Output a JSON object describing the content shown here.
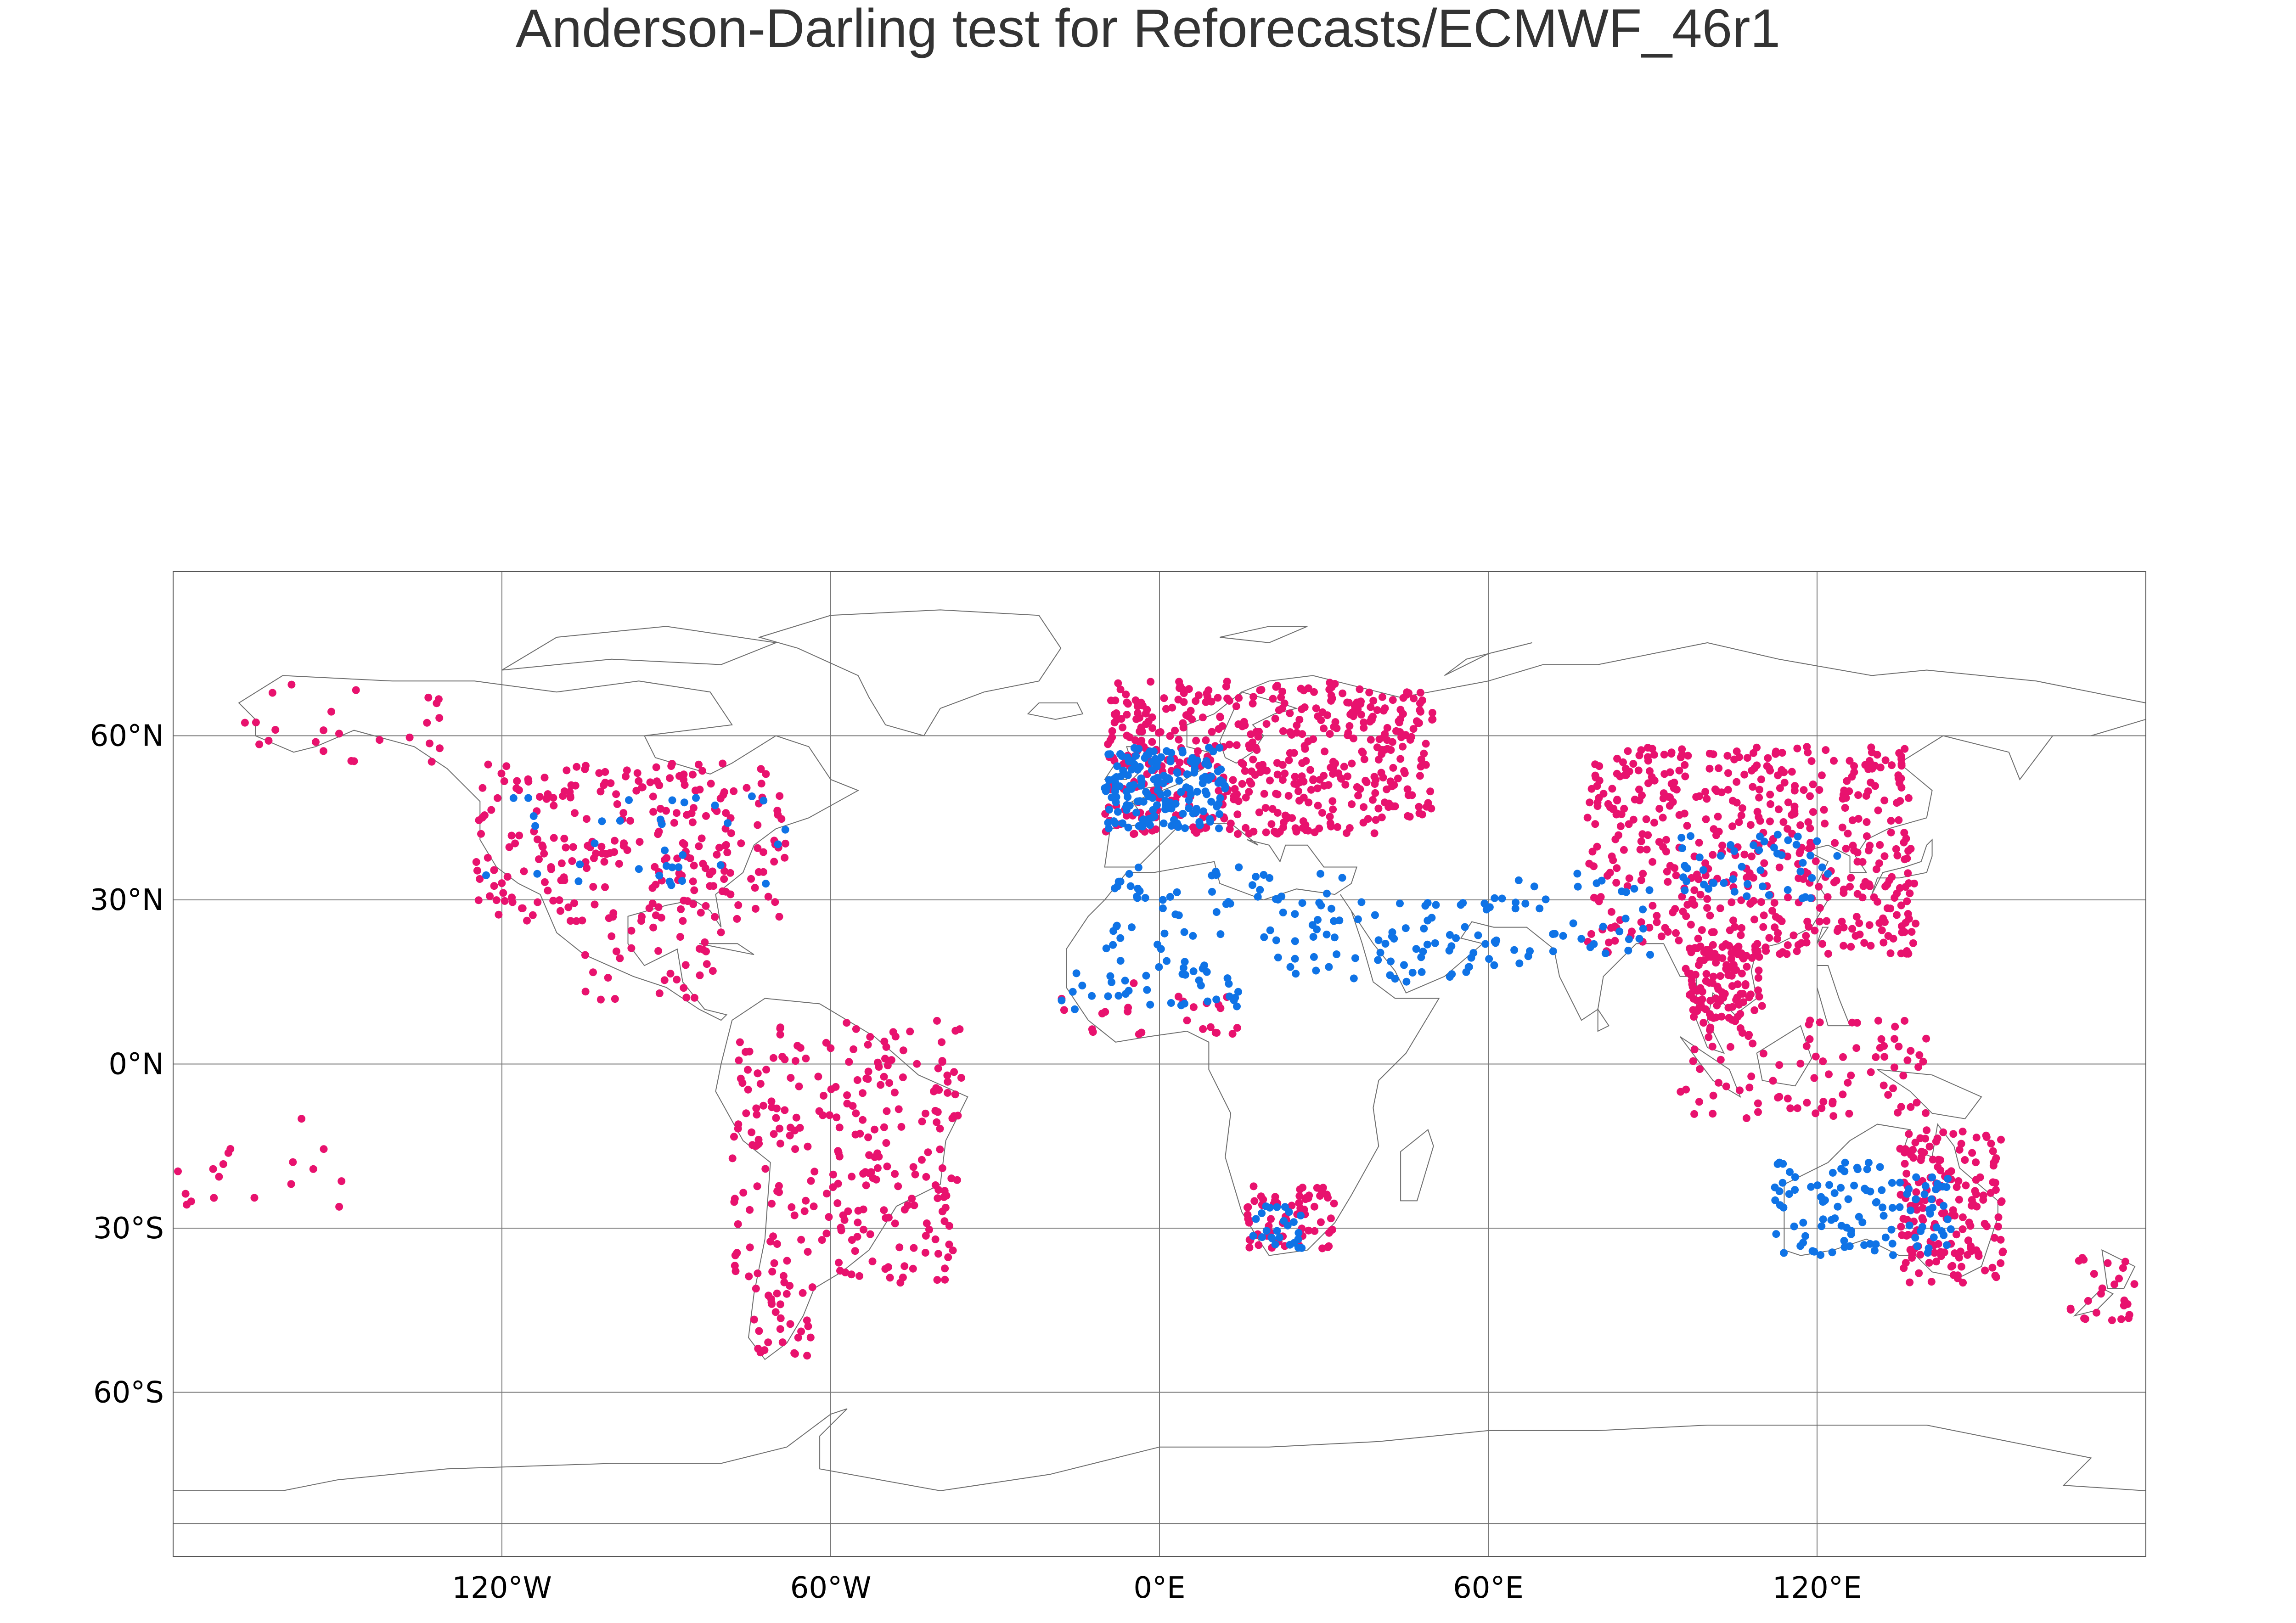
{
  "title": "Anderson-Darling test for Reforecasts/ECMWF_46r1",
  "map": {
    "projection": "equirectangular",
    "lon_range": [
      -180,
      180
    ],
    "lat_range": [
      -90,
      90
    ],
    "grid": true,
    "coastlines": true,
    "country_borders": true,
    "lon_ticks": [
      {
        "lon": -120,
        "label": "120°W"
      },
      {
        "lon": -60,
        "label": "60°W"
      },
      {
        "lon": 0,
        "label": "0°E"
      },
      {
        "lon": 60,
        "label": "60°E"
      },
      {
        "lon": 120,
        "label": "120°E"
      }
    ],
    "lat_ticks": [
      {
        "lat": 60,
        "label": "60°N"
      },
      {
        "lat": 30,
        "label": "30°N"
      },
      {
        "lat": 0,
        "label": "0°N"
      },
      {
        "lat": -30,
        "label": "30°S"
      },
      {
        "lat": -60,
        "label": "60°S"
      }
    ],
    "colors": {
      "marker_pink": "#e8126e",
      "marker_blue": "#0f73e6",
      "grid": "#7a7a7a",
      "coast": "#6e6e6e",
      "frame": "#555555"
    }
  },
  "chart_data": {
    "type": "scatter",
    "title": "Anderson-Darling test for Reforecasts/ECMWF_46r1",
    "series": [
      {
        "color": "#e8126e",
        "regions": [
          {
            "lon": [
              -125,
              -68
            ],
            "lat": [
              26,
              55
            ],
            "n": 260
          },
          {
            "lon": [
              -78,
              -36
            ],
            "lat": [
              -40,
              8
            ],
            "n": 260
          },
          {
            "lon": [
              -74,
              -63
            ],
            "lat": [
              -54,
              -40
            ],
            "n": 30
          },
          {
            "lon": [
              -168,
              -130
            ],
            "lat": [
              54,
              70
            ],
            "n": 25
          },
          {
            "lon": [
              -10,
              40
            ],
            "lat": [
              42,
              70
            ],
            "n": 420
          },
          {
            "lon": [
              40,
              50
            ],
            "lat": [
              45,
              68
            ],
            "n": 80
          },
          {
            "lon": [
              78,
              138
            ],
            "lat": [
              20,
              58
            ],
            "n": 500
          },
          {
            "lon": [
              96,
              110
            ],
            "lat": [
              8,
              22
            ],
            "n": 120
          },
          {
            "lon": [
              95,
              140
            ],
            "lat": [
              -10,
              8
            ],
            "n": 90
          },
          {
            "lon": [
              135,
              154
            ],
            "lat": [
              -40,
              -12
            ],
            "n": 170
          },
          {
            "lon": [
              16,
              32
            ],
            "lat": [
              -34,
              -22
            ],
            "n": 70
          },
          {
            "lon": [
              166,
              178
            ],
            "lat": [
              -47,
              -35
            ],
            "n": 25
          },
          {
            "lon": [
              -180,
              -148
            ],
            "lat": [
              -28,
              -10
            ],
            "n": 18
          },
          {
            "lon": [
              -105,
              -80
            ],
            "lat": [
              10,
              25
            ],
            "n": 30
          },
          {
            "lon": [
              -18,
              15
            ],
            "lat": [
              5,
              15
            ],
            "n": 25
          }
        ]
      },
      {
        "color": "#0f73e6",
        "regions": [
          {
            "lon": [
              -10,
              12
            ],
            "lat": [
              43,
              58
            ],
            "n": 170
          },
          {
            "lon": [
              -10,
              35
            ],
            "lat": [
              16,
              36
            ],
            "n": 90
          },
          {
            "lon": [
              35,
              60
            ],
            "lat": [
              15,
              30
            ],
            "n": 50
          },
          {
            "lon": [
              112,
              145
            ],
            "lat": [
              -35,
              -18
            ],
            "n": 110
          },
          {
            "lon": [
              95,
              124
            ],
            "lat": [
              30,
              42
            ],
            "n": 50
          },
          {
            "lon": [
              -125,
              -66
            ],
            "lat": [
              32,
              50
            ],
            "n": 35
          },
          {
            "lon": [
              60,
              90
            ],
            "lat": [
              18,
              35
            ],
            "n": 45
          },
          {
            "lon": [
              16,
              26
            ],
            "lat": [
              -34,
              -26
            ],
            "n": 25
          },
          {
            "lon": [
              -18,
              15
            ],
            "lat": [
              10,
              17
            ],
            "n": 30
          }
        ]
      }
    ]
  }
}
